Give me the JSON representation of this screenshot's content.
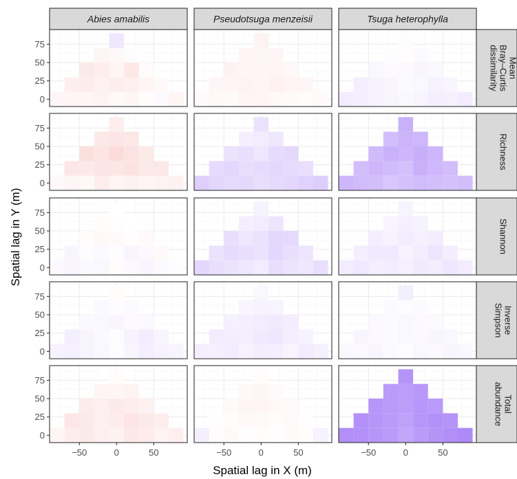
{
  "chart_data": {
    "type": "heatmap",
    "xlabel": "Spatial lag in X (m)",
    "ylabel": "Spatial lag in Y (m)",
    "column_facets": [
      "Abies amabilis",
      "Pseudotsuga menzeisii",
      "Tsuga heterophylla"
    ],
    "row_facets": [
      [
        "Mean",
        "Bray–Curtis",
        "dissimilarity"
      ],
      [
        "Richness"
      ],
      [
        "Shannon"
      ],
      [
        "Inverse",
        "Simpson"
      ],
      [
        "Total",
        "abundance"
      ]
    ],
    "x_ticks": [
      -50,
      0,
      50
    ],
    "y_ticks": [
      0,
      25,
      50,
      75
    ],
    "xlim": [
      -90,
      95
    ],
    "ylim": [
      -10,
      95
    ],
    "x_bins": [
      -80,
      -60,
      -40,
      -20,
      0,
      20,
      40,
      60,
      80
    ],
    "y_bins": [
      0,
      20,
      40,
      60,
      80
    ],
    "row_extent": [
      [
        0,
        8
      ],
      [
        1,
        7
      ],
      [
        2,
        6
      ],
      [
        3,
        5
      ],
      [
        4,
        4
      ]
    ],
    "colors": {
      "positive": "#e9524a",
      "negative": "#8f5df5",
      "zero": "#ffffff",
      "panel_bg": "#ffffff",
      "grid": "#ebebeb",
      "strip_bg": "#d9d9d9",
      "border": "#333333"
    },
    "panels": [
      [
        {
          "cells": [
            [
              0.05,
              0.06,
              0.05,
              0.07,
              0.04,
              0.05,
              0.02,
              -0.03,
              0.06
            ],
            [
              0.09,
              0.11,
              0.08,
              0.1,
              0.09,
              0.06,
              0.03
            ],
            [
              0.12,
              0.1,
              0.06,
              0.13,
              0.02
            ],
            [
              0.05,
              0.04,
              -0.02
            ],
            [
              -0.15
            ]
          ]
        },
        {
          "cells": [
            [
              0.04,
              0.05,
              0.04,
              0.1,
              0.06,
              0.08,
              0.05,
              0.07,
              0.08
            ],
            [
              0.14,
              0.12,
              0.15,
              0.14,
              0.16,
              0.12,
              0.13
            ],
            [
              0.18,
              0.15,
              0.2,
              0.16,
              0.12
            ],
            [
              0.13,
              0.15,
              0.14
            ],
            [
              0.1
            ]
          ]
        },
        {
          "cells": [
            [
              -0.04,
              -0.06,
              -0.04,
              -0.05,
              0.02,
              -0.04,
              -0.06,
              -0.03,
              -0.02
            ],
            [
              -0.06,
              -0.02,
              -0.03,
              -0.02,
              -0.06,
              -0.04,
              0.03
            ],
            [
              0.02,
              0.04,
              0.03,
              0.01,
              0.03
            ],
            [
              0.02,
              0.01,
              0.0
            ],
            [
              0.0
            ]
          ]
        },
        {
          "cells": [
            [
              -0.08,
              -0.09,
              -0.07,
              -0.05,
              -0.02,
              -0.06,
              -0.1,
              -0.08,
              -0.07
            ],
            [
              -0.1,
              -0.07,
              -0.04,
              -0.02,
              -0.08,
              -0.11,
              -0.06
            ],
            [
              -0.04,
              -0.05,
              -0.06,
              -0.03,
              -0.04
            ],
            [
              -0.04,
              -0.02,
              -0.03
            ],
            [
              0.02
            ]
          ]
        },
        {
          "cells": [
            [
              0.06,
              0.1,
              0.12,
              0.09,
              0.08,
              0.13,
              0.11,
              0.07,
              0.09
            ],
            [
              0.14,
              0.12,
              0.09,
              0.11,
              0.15,
              0.12,
              0.1
            ],
            [
              0.11,
              0.09,
              0.12,
              0.1,
              0.08
            ],
            [
              0.06,
              0.05,
              0.07
            ],
            [
              0.02
            ]
          ]
        }
      ],
      [
        {
          "cells": [
            [
              0.03,
              0.04,
              0.03,
              0.05,
              0.06,
              0.04,
              0.03,
              0.02,
              0.03
            ],
            [
              0.05,
              0.06,
              0.07,
              0.05,
              0.08,
              0.06,
              0.05
            ],
            [
              0.07,
              0.06,
              0.05,
              0.06,
              0.04
            ],
            [
              0.06,
              0.05,
              0.05
            ],
            [
              0.07
            ]
          ]
        },
        {
          "cells": [
            [
              -0.3,
              -0.25,
              -0.22,
              -0.24,
              -0.2,
              -0.22,
              -0.25,
              -0.28,
              -0.3
            ],
            [
              -0.22,
              -0.25,
              -0.2,
              -0.22,
              -0.24,
              -0.22,
              -0.2
            ],
            [
              -0.18,
              -0.2,
              -0.15,
              -0.22,
              -0.24
            ],
            [
              -0.1,
              -0.12,
              -0.15
            ],
            [
              -0.18
            ]
          ]
        },
        {
          "cells": [
            [
              -0.25,
              -0.2,
              -0.18,
              -0.15,
              -0.12,
              -0.2,
              -0.17,
              -0.15,
              -0.2
            ],
            [
              -0.18,
              -0.22,
              -0.2,
              -0.18,
              -0.25,
              -0.2,
              -0.16
            ],
            [
              -0.2,
              -0.15,
              -0.18,
              -0.24,
              -0.23
            ],
            [
              -0.1,
              -0.12,
              -0.16
            ],
            [
              -0.08
            ]
          ]
        },
        {
          "cells": [
            [
              -0.1,
              -0.09,
              -0.12,
              -0.08,
              -0.11,
              -0.1,
              -0.07,
              -0.12,
              -0.09
            ],
            [
              -0.12,
              -0.11,
              -0.1,
              -0.13,
              -0.15,
              -0.1,
              -0.08
            ],
            [
              -0.09,
              -0.1,
              -0.12,
              -0.13,
              -0.11
            ],
            [
              -0.06,
              -0.08,
              -0.07
            ],
            [
              -0.05
            ]
          ]
        },
        {
          "cells": [
            [
              -0.1,
              0.02,
              0.03,
              0.01,
              0.02,
              0.01,
              0.03,
              0.02,
              -0.08
            ],
            [
              0.01,
              0.02,
              0.04,
              0.03,
              0.02,
              0.03,
              0.01
            ],
            [
              0.03,
              0.05,
              0.06,
              0.04,
              0.03
            ],
            [
              0.04,
              0.05,
              0.03
            ],
            [
              0.02
            ]
          ]
        }
      ],
      [
        {
          "cells": [
            [
              -0.12,
              -0.1,
              -0.08,
              -0.06,
              -0.05,
              -0.07,
              -0.1,
              -0.09,
              -0.12
            ],
            [
              -0.1,
              -0.08,
              -0.06,
              -0.03,
              -0.05,
              -0.08,
              -0.06
            ],
            [
              -0.05,
              -0.03,
              -0.04,
              -0.06,
              -0.04
            ],
            [
              -0.02,
              0.01,
              -0.03
            ],
            [
              -0.02
            ]
          ]
        },
        {
          "cells": [
            [
              -0.45,
              -0.42,
              -0.4,
              -0.35,
              -0.38,
              -0.42,
              -0.4,
              -0.38,
              -0.4
            ],
            [
              -0.4,
              -0.45,
              -0.42,
              -0.38,
              -0.48,
              -0.44,
              -0.4
            ],
            [
              -0.42,
              -0.48,
              -0.45,
              -0.5,
              -0.45
            ],
            [
              -0.4,
              -0.46,
              -0.44
            ],
            [
              -0.48
            ]
          ]
        },
        {
          "cells": [
            [
              -0.12,
              -0.14,
              -0.1,
              -0.12,
              -0.09,
              -0.13,
              -0.11,
              -0.15,
              -0.12
            ],
            [
              -0.1,
              -0.13,
              -0.14,
              -0.08,
              -0.12,
              -0.16,
              -0.11
            ],
            [
              -0.1,
              -0.08,
              -0.12,
              -0.09,
              -0.11
            ],
            [
              -0.06,
              -0.09,
              -0.08
            ],
            [
              -0.07
            ]
          ]
        },
        {
          "cells": [
            [
              -0.05,
              -0.04,
              -0.06,
              -0.03,
              -0.02,
              -0.05,
              -0.04,
              -0.06,
              -0.05
            ],
            [
              -0.06,
              -0.04,
              -0.03,
              -0.05,
              -0.04,
              -0.06,
              -0.05
            ],
            [
              -0.04,
              -0.03,
              -0.05,
              -0.04,
              -0.03
            ],
            [
              -0.03,
              -0.02,
              -0.03
            ],
            [
              -0.1
            ]
          ]
        },
        {
          "cells": [
            [
              -0.7,
              -0.68,
              -0.65,
              -0.62,
              -0.55,
              -0.62,
              -0.66,
              -0.7,
              -0.72
            ],
            [
              -0.68,
              -0.65,
              -0.62,
              -0.58,
              -0.65,
              -0.68,
              -0.66
            ],
            [
              -0.65,
              -0.62,
              -0.6,
              -0.64,
              -0.62
            ],
            [
              -0.62,
              -0.6,
              -0.63
            ],
            [
              -0.66
            ]
          ]
        }
      ]
    ]
  }
}
